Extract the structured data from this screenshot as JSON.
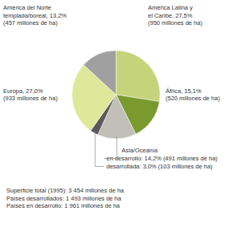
{
  "chart_data": {
    "type": "pie",
    "categories": [
      "América Latina y\nel Caribe, 27,5%\n(950 millones de ha)",
      "África, 15,1%\n(520 millones de ha)",
      "en desarrollo: 14,2% (491 millones de ha)",
      "desarrollada: 3,0% (103 millones de ha)",
      "Europa, 27,0%\n(933 millones de ha)",
      "América del Norte\ntemplada/boreal, 13,2%\n(457 millones de ha)"
    ],
    "values": [
      27.5,
      15.1,
      14.2,
      3.0,
      27.0,
      13.2
    ],
    "colors": [
      "#c5d47a",
      "#7a9a2e",
      "#c0bfb8",
      "#5a5a5a",
      "#dde89a",
      "#a0a0a0"
    ],
    "annotations": [
      "Asia/Oceanía",
      "Superficie total (1995): 3 454 millones de ha\nPaíses desarrollados: 1 493 millones de ha\nPaíses en desarrollo: 1 961 millones de ha"
    ]
  }
}
